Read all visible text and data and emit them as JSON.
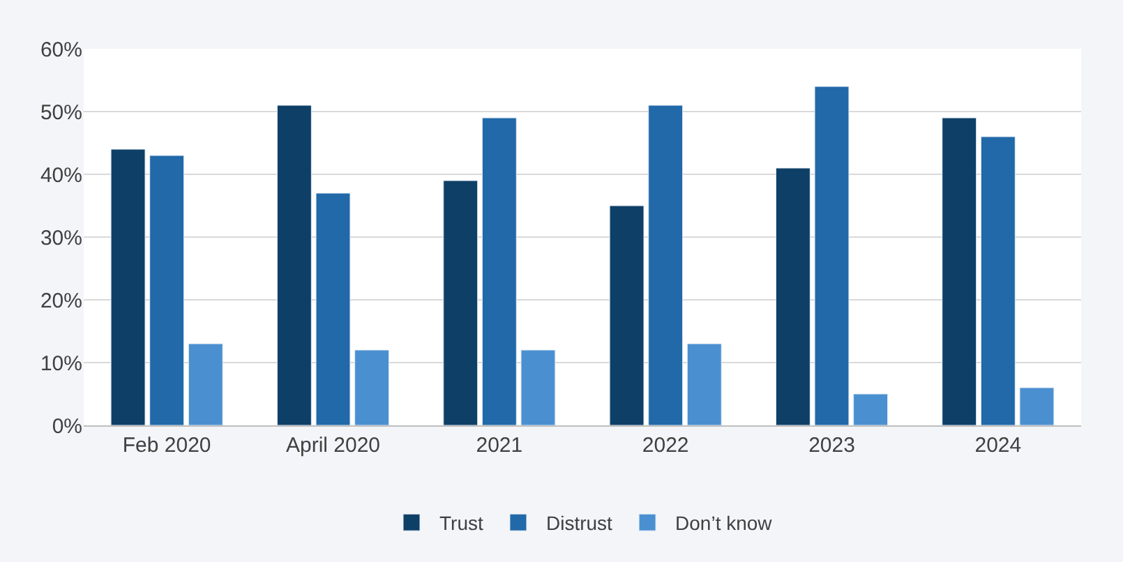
{
  "chart_data": {
    "type": "bar",
    "categories": [
      "Feb 2020",
      "April 2020",
      "2021",
      "2022",
      "2023",
      "2024"
    ],
    "series": [
      {
        "name": "Trust",
        "color": "#0e3f66",
        "values": [
          44,
          51,
          39,
          35,
          41,
          49
        ]
      },
      {
        "name": "Distrust",
        "color": "#2169a8",
        "values": [
          43,
          37,
          49,
          51,
          54,
          46
        ]
      },
      {
        "name": "Don’t know",
        "color": "#4a90d0",
        "values": [
          13,
          12,
          12,
          13,
          5,
          6
        ]
      }
    ],
    "ylim": [
      0,
      60
    ],
    "yticks": [
      {
        "value": 0,
        "label": "0%"
      },
      {
        "value": 10,
        "label": "10%"
      },
      {
        "value": 20,
        "label": "20%"
      },
      {
        "value": 30,
        "label": "30%"
      },
      {
        "value": 40,
        "label": "40%"
      },
      {
        "value": 50,
        "label": "50%"
      },
      {
        "value": 60,
        "label": "60%"
      }
    ],
    "grid": "y",
    "legend": "bottom"
  }
}
